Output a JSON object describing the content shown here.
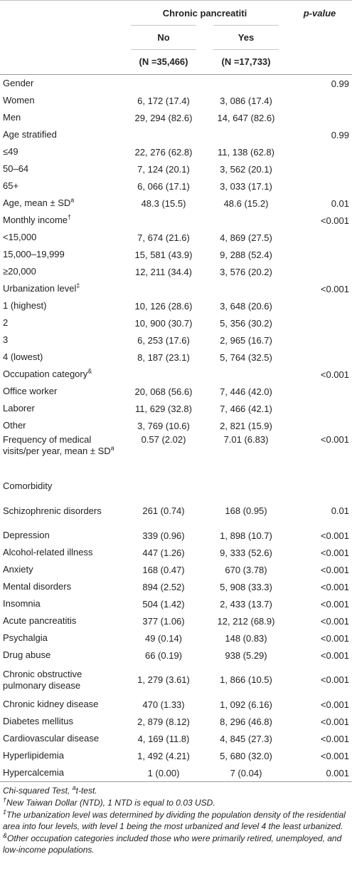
{
  "header": {
    "group_title": "Chronic pancreatiti",
    "pvalue_title": "p-value",
    "no_label": "No",
    "yes_label": "Yes",
    "n_no": "(N =35,466)",
    "n_yes": "(N =17,733)"
  },
  "rows": [
    {
      "label": "Gender",
      "no": "",
      "yes": "",
      "p": "0.99"
    },
    {
      "label": "Women",
      "no": "6, 172 (17.4)",
      "yes": "3, 086 (17.4)",
      "p": ""
    },
    {
      "label": "Men",
      "no": "29, 294 (82.6)",
      "yes": "14, 647 (82.6)",
      "p": ""
    },
    {
      "label": "Age stratified",
      "no": "",
      "yes": "",
      "p": "0.99"
    },
    {
      "label": "≤49",
      "no": "22, 276 (62.8)",
      "yes": "11, 138 (62.8)",
      "p": ""
    },
    {
      "label": "50–64",
      "no": "7, 124 (20.1)",
      "yes": "3, 562 (20.1)",
      "p": ""
    },
    {
      "label": "65+",
      "no": "6, 066 (17.1)",
      "yes": "3, 033 (17.1)",
      "p": ""
    },
    {
      "label": "Age, mean ± SD",
      "sup": "a",
      "no": "48.3 (15.5)",
      "yes": "48.6 (15.2)",
      "p": "0.01"
    },
    {
      "label": "Monthly income",
      "sup": "†",
      "no": "",
      "yes": "",
      "p": "<0.001"
    },
    {
      "label": "<15,000",
      "no": "7, 674 (21.6)",
      "yes": "4, 869 (27.5)",
      "p": ""
    },
    {
      "label": "15,000–19,999",
      "no": "15, 581 (43.9)",
      "yes": "9, 288 (52.4)",
      "p": ""
    },
    {
      "label": "≥20,000",
      "no": "12, 211 (34.4)",
      "yes": "3, 576 (20.2)",
      "p": ""
    },
    {
      "label": "Urbanization level",
      "sup": "‡",
      "no": "",
      "yes": "",
      "p": "<0.001"
    },
    {
      "label": "1 (highest)",
      "no": "10, 126 (28.6)",
      "yes": "3, 648 (20.6)",
      "p": ""
    },
    {
      "label": "2",
      "no": "10, 900 (30.7)",
      "yes": "5, 356 (30.2)",
      "p": ""
    },
    {
      "label": "3",
      "no": "6, 253 (17.6)",
      "yes": "2, 965 (16.7)",
      "p": ""
    },
    {
      "label": "4 (lowest)",
      "no": "8, 187 (23.1)",
      "yes": "5, 764 (32.5)",
      "p": ""
    },
    {
      "label": "Occupation category",
      "sup": "&",
      "no": "",
      "yes": "",
      "p": "<0.001"
    },
    {
      "label": "Office worker",
      "no": "20, 068 (56.6)",
      "yes": "7, 446 (42.0)",
      "p": ""
    },
    {
      "label": "Laborer",
      "no": "11, 629 (32.8)",
      "yes": "7, 466 (42.1)",
      "p": ""
    },
    {
      "label": "Other",
      "no": "3, 769 (10.6)",
      "yes": "2, 821 (15.9)",
      "p": ""
    },
    {
      "label": "Frequency of medical visits/per year, mean ± SD",
      "sup": "a",
      "no": "0.57 (2.02)",
      "yes": "7.01 (6.83)",
      "p": "<0.001",
      "lines": 3
    },
    {
      "label": "Comorbidity",
      "no": "",
      "yes": "",
      "p": ""
    },
    {
      "label": "Schizophrenic disorders",
      "no": "261 (0.74)",
      "yes": "168 (0.95)",
      "p": "0.01",
      "lines": 2
    },
    {
      "label": "Depression",
      "no": "339 (0.96)",
      "yes": "1, 898 (10.7)",
      "p": "<0.001"
    },
    {
      "label": "Alcohol-related illness",
      "no": "447 (1.26)",
      "yes": "9, 333 (52.6)",
      "p": "<0.001"
    },
    {
      "label": "Anxiety",
      "no": "168 (0.47)",
      "yes": "670 (3.78)",
      "p": "<0.001"
    },
    {
      "label": "Mental disorders",
      "no": "894 (2.52)",
      "yes": "5, 908 (33.3)",
      "p": "<0.001"
    },
    {
      "label": "Insomnia",
      "no": "504 (1.42)",
      "yes": "2, 433 (13.7)",
      "p": "<0.001"
    },
    {
      "label": "Acute pancreatitis",
      "no": "377 (1.06)",
      "yes": "12, 212 (68.9)",
      "p": "<0.001"
    },
    {
      "label": "Psychalgia",
      "no": "49 (0.14)",
      "yes": "148 (0.83)",
      "p": "<0.001"
    },
    {
      "label": "Drug abuse",
      "no": "66 (0.19)",
      "yes": "938 (5.29)",
      "p": "<0.001"
    },
    {
      "label": "Chronic obstructive pulmonary disease",
      "no": "1, 279 (3.61)",
      "yes": "1, 866 (10.5)",
      "p": "<0.001",
      "lines": 2
    },
    {
      "label": "Chronic kidney disease",
      "no": "470 (1.33)",
      "yes": "1, 092 (6.16)",
      "p": "<0.001"
    },
    {
      "label": "Diabetes mellitus",
      "no": "2, 879 (8.12)",
      "yes": "8, 296 (46.8)",
      "p": "<0.001"
    },
    {
      "label": "Cardiovascular disease",
      "no": "4, 169 (11.8)",
      "yes": "4, 845 (27.3)",
      "p": "<0.001"
    },
    {
      "label": "Hyperlipidemia",
      "no": "1, 492 (4.21)",
      "yes": "5, 680 (32.0)",
      "p": "<0.001"
    },
    {
      "label": "Hypercalcemia",
      "no": "1 (0.00)",
      "yes": "7 (0.04)",
      "p": "0.001"
    }
  ],
  "footnotes": {
    "line1_main": "Chi-squared Test, ",
    "line1_sup": "a",
    "line1_rest": "t-test.",
    "note2_sup": "†",
    "note2": "New Taiwan Dollar (NTD), 1 NTD is equal to 0.03 USD.",
    "note3_sup": "‡",
    "note3": "The urbanization level was determined by dividing the population density of the residential area into four levels, with level 1 being the most urbanized and level 4 the least urbanized.",
    "note4_sup": "&",
    "note4": "Other occupation categories included those who were primarily retired, unemployed, and low-income populations."
  }
}
